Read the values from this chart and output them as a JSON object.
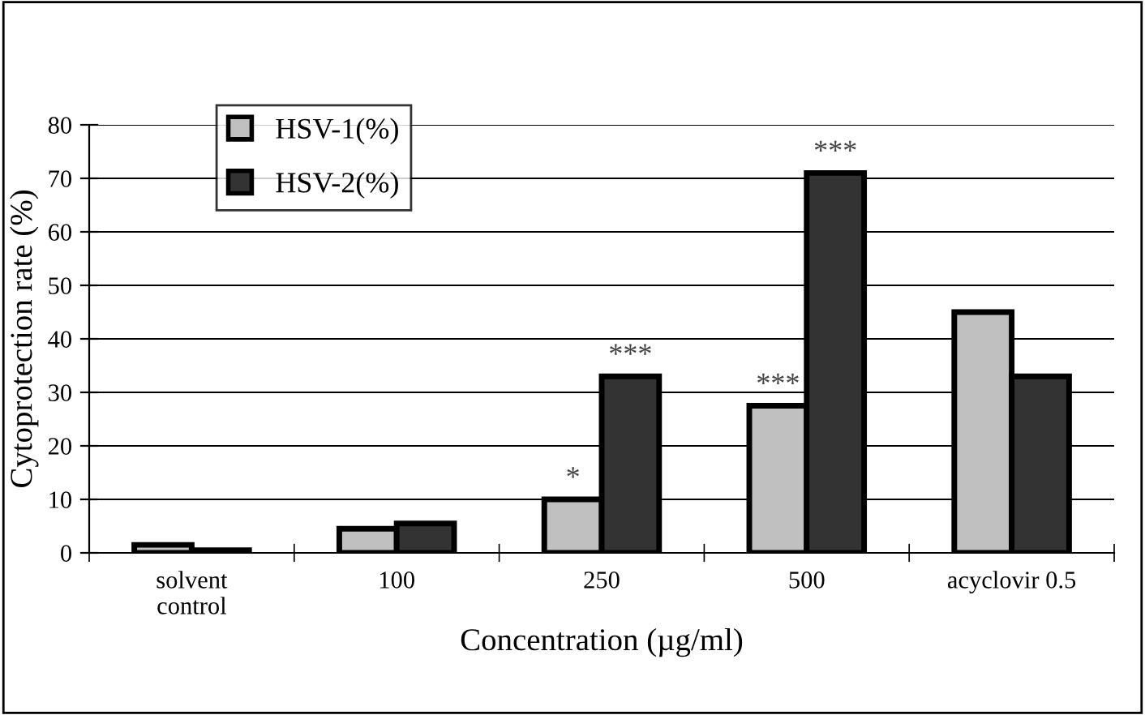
{
  "chart_data": {
    "type": "bar",
    "xlabel": "Concentration (µg/ml)",
    "ylabel": "Cytoprotection rate (%)",
    "categories": [
      "solvent\ncontrol",
      "100",
      "250",
      "500",
      "acyclovir 0.5"
    ],
    "series": [
      {
        "name": "HSV-1(%)",
        "color": "#c0c0c0",
        "values": [
          1.5,
          4.5,
          10,
          27.5,
          45
        ]
      },
      {
        "name": "HSV-2(%)",
        "color": "#333333",
        "values": [
          0.5,
          5.5,
          33,
          71,
          33
        ]
      }
    ],
    "ylim": [
      0,
      80
    ],
    "yticks": [
      0,
      10,
      20,
      30,
      40,
      50,
      60,
      70,
      80
    ],
    "grid": "y",
    "legend": "top left",
    "annotations": [
      {
        "text": "*",
        "x": "250",
        "y": 10
      },
      {
        "text": "***",
        "x": "250",
        "y": 33
      },
      {
        "text": "***",
        "x": "500",
        "y": 27.5
      },
      {
        "text": "***",
        "x": "500",
        "y": 71
      }
    ]
  }
}
